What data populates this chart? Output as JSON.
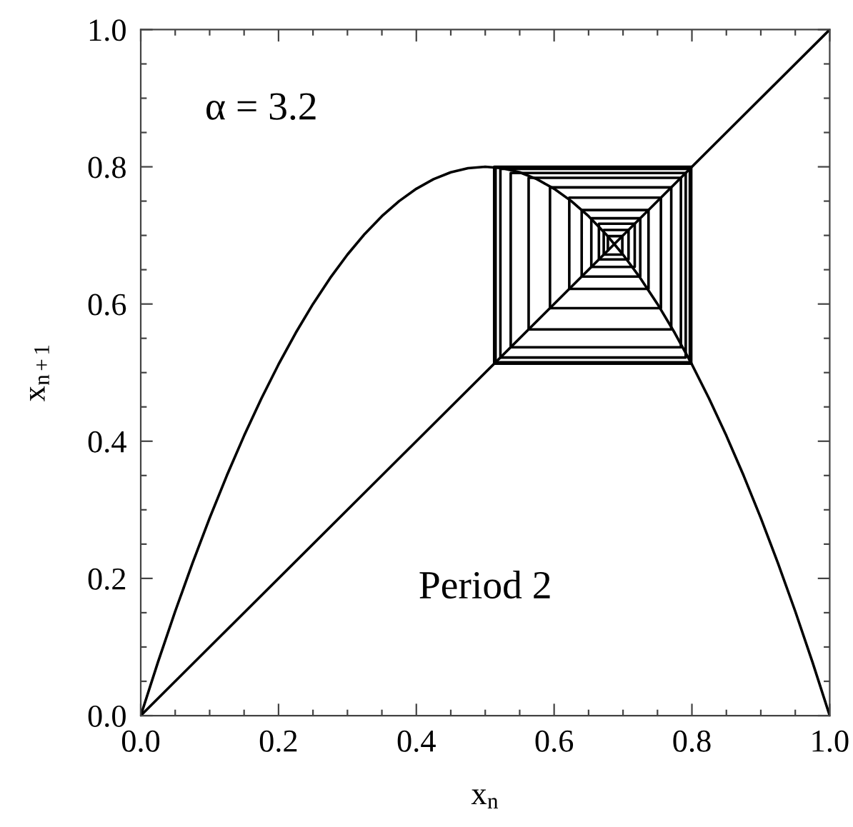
{
  "chart_data": {
    "type": "line",
    "xlabel": "x$_{n}$",
    "ylabel": "x$_{n+1}$",
    "annotations": [
      "α = 3.2",
      "Period 2"
    ],
    "xlim": [
      0,
      1
    ],
    "ylim": [
      0,
      1
    ],
    "xticks": [
      {
        "value": 0,
        "label": "0.0"
      },
      {
        "value": 0.05,
        "label": null
      },
      {
        "value": 0.1,
        "label": null
      },
      {
        "value": 0.15,
        "label": null
      },
      0.2,
      {
        "value": 0.25,
        "label": null
      },
      {
        "value": 0.3,
        "label": null
      },
      {
        "value": 0.35,
        "label": null
      },
      0.4,
      {
        "value": 0.45,
        "label": null
      },
      {
        "value": 0.5,
        "label": null
      },
      {
        "value": 0.55,
        "label": null
      },
      0.6,
      {
        "value": 0.65,
        "label": null
      },
      {
        "value": 0.7,
        "label": null
      },
      {
        "value": 0.75,
        "label": null
      },
      0.8,
      {
        "value": 0.85,
        "label": null
      },
      {
        "value": 0.9,
        "label": null
      },
      {
        "value": 0.95,
        "label": null
      },
      {
        "value": 1,
        "label": "1.0"
      }
    ],
    "yticks": [
      {
        "value": 0,
        "label": "0.0"
      },
      {
        "value": 0.05,
        "label": null
      },
      {
        "value": 0.1,
        "label": null
      },
      {
        "value": 0.15,
        "label": null
      },
      0.2,
      {
        "value": 0.25,
        "label": null
      },
      {
        "value": 0.3,
        "label": null
      },
      {
        "value": 0.35,
        "label": null
      },
      0.4,
      {
        "value": 0.45,
        "label": null
      },
      {
        "value": 0.5,
        "label": null
      },
      {
        "value": 0.55,
        "label": null
      },
      0.6,
      {
        "value": 0.65,
        "label": null
      },
      {
        "value": 0.7,
        "label": null
      },
      {
        "value": 0.75,
        "label": null
      },
      0.8,
      {
        "value": 0.85,
        "label": null
      },
      {
        "value": 0.9,
        "label": null
      },
      {
        "value": 0.95,
        "label": null
      },
      {
        "value": 1,
        "label": "1.0"
      }
    ],
    "series": [
      {
        "color": "#000000",
        "x": [
          0,
          0.025,
          0.05,
          0.075,
          0.1,
          0.125,
          0.15,
          0.175,
          0.2,
          0.225,
          0.25,
          0.275,
          0.3,
          0.325,
          0.35,
          0.375,
          0.4,
          0.425,
          0.45,
          0.475,
          0.5,
          0.525,
          0.55,
          0.575,
          0.6,
          0.625,
          0.65,
          0.675,
          0.7,
          0.725,
          0.75,
          0.775,
          0.8,
          0.825,
          0.85,
          0.875,
          0.9,
          0.925,
          0.95,
          0.975,
          1
        ],
        "values": [
          0,
          0.078,
          0.152,
          0.222,
          0.288,
          0.35,
          0.408,
          0.462,
          0.512,
          0.558,
          0.6,
          0.638,
          0.672,
          0.702,
          0.728,
          0.75,
          0.768,
          0.782,
          0.792,
          0.798,
          0.8,
          0.798,
          0.792,
          0.782,
          0.768,
          0.75,
          0.728,
          0.702,
          0.672,
          0.638,
          0.6,
          0.558,
          0.512,
          0.462,
          0.408,
          0.35,
          0.288,
          0.222,
          0.152,
          0.078,
          0
        ]
      },
      {
        "color": "#000000",
        "x": [
          0,
          1
        ],
        "values": [
          0,
          1
        ]
      },
      {
        "color": "#000000",
        "x": [
          0.678,
          0.678,
          0.699,
          0.699,
          0.672,
          0.672,
          0.708,
          0.708,
          0.665,
          0.665,
          0.717,
          0.717,
          0.654,
          0.654,
          0.725,
          0.725,
          0.64,
          0.64,
          0.737,
          0.737,
          0.622,
          0.622,
          0.755,
          0.755,
          0.594,
          0.594,
          0.77,
          0.77,
          0.563,
          0.563,
          0.784,
          0.784,
          0.537,
          0.537,
          0.791,
          0.791,
          0.522,
          0.522,
          0.797,
          0.797,
          0.515,
          0.515,
          0.799,
          0.799,
          0.513,
          0.513,
          0.8
        ],
        "values": [
          0.678,
          0.699,
          0.699,
          0.672,
          0.672,
          0.708,
          0.708,
          0.665,
          0.665,
          0.717,
          0.717,
          0.654,
          0.654,
          0.725,
          0.725,
          0.64,
          0.64,
          0.737,
          0.737,
          0.622,
          0.622,
          0.755,
          0.755,
          0.594,
          0.594,
          0.77,
          0.77,
          0.563,
          0.563,
          0.784,
          0.784,
          0.537,
          0.537,
          0.791,
          0.791,
          0.522,
          0.522,
          0.797,
          0.797,
          0.515,
          0.515,
          0.799,
          0.799,
          0.513,
          0.513,
          0.8,
          0.8
        ]
      }
    ]
  }
}
